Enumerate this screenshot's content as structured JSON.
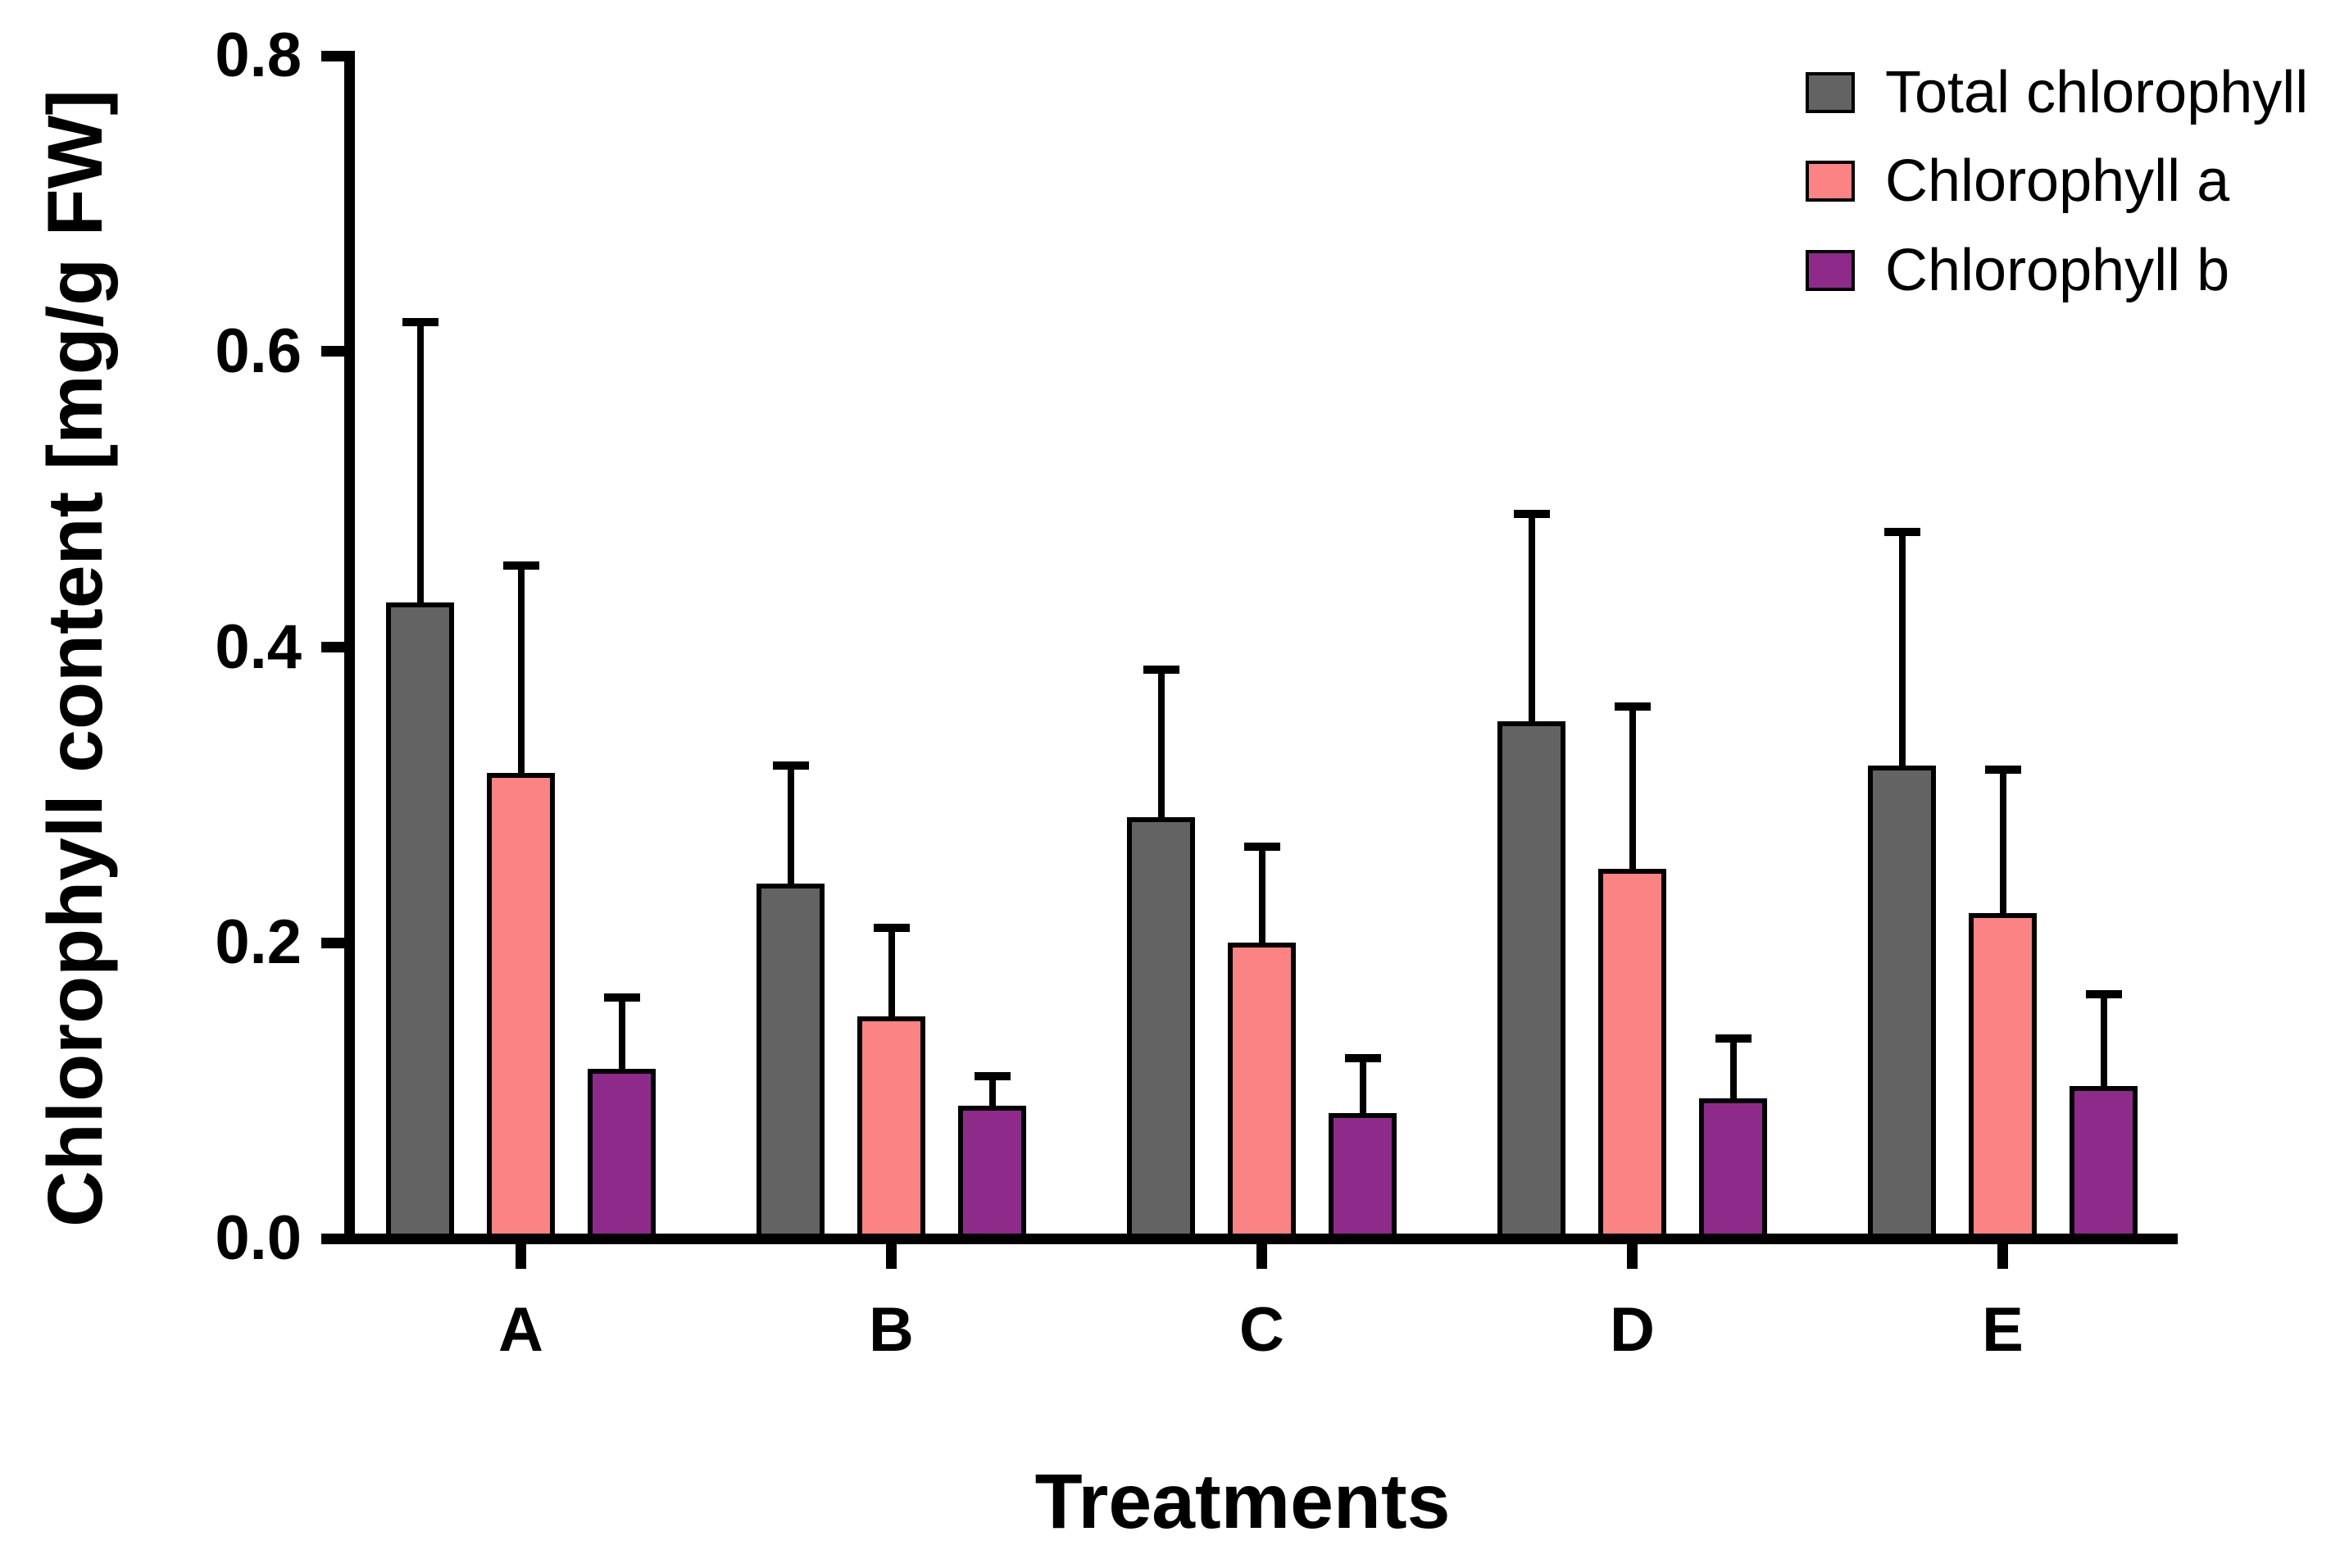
{
  "figure": {
    "background": "#FFFFFF",
    "text_color": "#000000"
  },
  "chart_data": {
    "type": "bar",
    "title": "",
    "xlabel": "Treatments",
    "ylabel": "Chlorophyll content [mg/g FW]",
    "categories": [
      "A",
      "B",
      "C",
      "D",
      "E"
    ],
    "y_ticks": [
      "0.0",
      "0.2",
      "0.4",
      "0.6",
      "0.8"
    ],
    "ylim": [
      0,
      0.8
    ],
    "grid": false,
    "legend_position": "top-right",
    "error_bars": "upper SD whiskers with caps",
    "series": [
      {
        "name": "Total chlorophyll",
        "color": "#636363",
        "values": [
          0.43,
          0.24,
          0.285,
          0.35,
          0.32
        ],
        "error_top": [
          0.62,
          0.32,
          0.385,
          0.49,
          0.478
        ]
      },
      {
        "name": "Chlorophyll a",
        "color": "#FC8383",
        "values": [
          0.315,
          0.15,
          0.2,
          0.25,
          0.22
        ],
        "error_top": [
          0.455,
          0.21,
          0.265,
          0.36,
          0.317
        ]
      },
      {
        "name": "Chlorophyll b",
        "color": "#8E2B8A",
        "values": [
          0.115,
          0.09,
          0.085,
          0.095,
          0.103
        ],
        "error_top": [
          0.163,
          0.11,
          0.122,
          0.135,
          0.165
        ]
      }
    ]
  }
}
